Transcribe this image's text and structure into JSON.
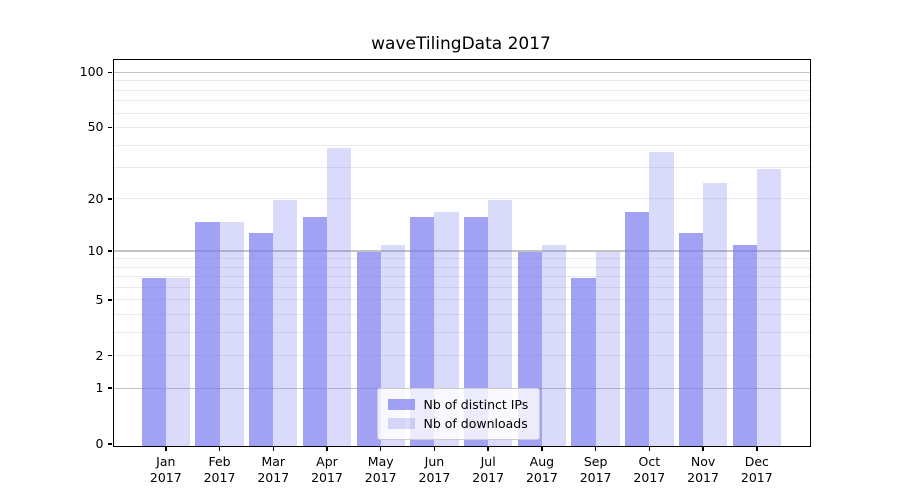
{
  "chart_data": {
    "type": "bar",
    "title": "waveTilingData 2017",
    "categories": [
      "Jan 2017",
      "Feb 2017",
      "Mar 2017",
      "Apr 2017",
      "May 2017",
      "Jun 2017",
      "Jul 2017",
      "Aug 2017",
      "Sep 2017",
      "Oct 2017",
      "Nov 2017",
      "Dec 2017"
    ],
    "x_tick_months": [
      "Jan",
      "Feb",
      "Mar",
      "Apr",
      "May",
      "Jun",
      "Jul",
      "Aug",
      "Sep",
      "Oct",
      "Nov",
      "Dec"
    ],
    "x_tick_year": "2017",
    "series": [
      {
        "name": "Nb of distinct IPs",
        "values": [
          7,
          15,
          13,
          16,
          10,
          16,
          16,
          10,
          7,
          17,
          13,
          11
        ]
      },
      {
        "name": "Nb of downloads",
        "values": [
          7,
          15,
          20,
          39,
          11,
          17,
          20,
          11,
          10,
          37,
          25,
          30
        ]
      }
    ],
    "y_scale": "symlog (log(1+v))",
    "ylim": [
      0,
      115
    ],
    "y_ticks": [
      0,
      1,
      2,
      5,
      10,
      20,
      50,
      100
    ],
    "y_major_gridlines": [
      1,
      10,
      100
    ],
    "y_minor_gridlines": [
      2,
      3,
      4,
      5,
      6,
      7,
      8,
      9,
      20,
      30,
      40,
      50,
      60,
      70,
      80,
      90
    ],
    "grid": "horizontal only",
    "legend_position": "lower center",
    "colors": {
      "bar_base": "#7b7bf0",
      "bar_ips_alpha": 0.7,
      "bar_downloads_alpha": 0.28,
      "grid_major": "#c3c3c3",
      "grid_minor": "#ebebeb",
      "axis": "#000000",
      "legend_border": "#cccccc"
    }
  }
}
